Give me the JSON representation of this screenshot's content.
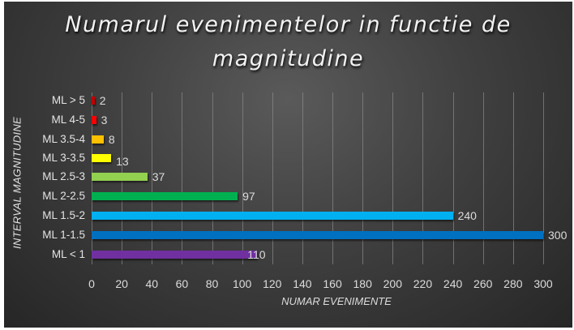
{
  "chart_data": {
    "type": "bar",
    "orientation": "horizontal",
    "title": "Numarul evenimentelor in functie de magnitudine",
    "xlabel": "NUMAR EVENIMENTE",
    "ylabel": "INTERVAL MAGNITUDINE",
    "categories": [
      "ML > 5",
      "ML  4-5",
      "ML  3.5-4",
      "ML 3-3.5",
      "ML 2.5-3",
      "ML 2-2.5",
      "ML 1.5-2",
      "ML 1-1.5",
      "ML < 1"
    ],
    "values": [
      2,
      3,
      8,
      13,
      37,
      97,
      240,
      300,
      110
    ],
    "colors": [
      "#c00000",
      "#ff0000",
      "#ffc000",
      "#ffff00",
      "#92d050",
      "#00b050",
      "#00b0f0",
      "#0070c0",
      "#7030a0"
    ],
    "xlim": [
      0,
      300
    ],
    "xticks": [
      "0",
      "20",
      "40",
      "60",
      "80",
      "100",
      "120",
      "140",
      "160",
      "180",
      "200",
      "220",
      "240",
      "260",
      "280",
      "300"
    ],
    "grid": true,
    "legend": null
  },
  "title_line1": "Numarul evenimentelor in functie de",
  "title_line2": "magnitudine"
}
